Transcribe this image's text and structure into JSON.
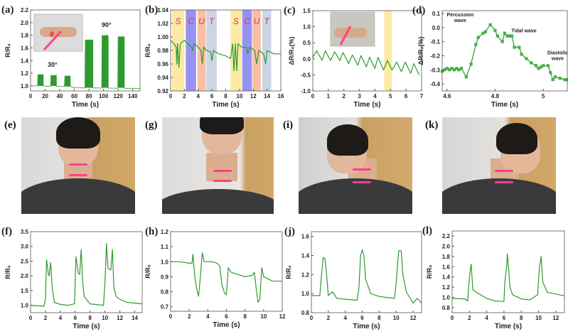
{
  "colors": {
    "line": "#2e9a2e",
    "line_dark": "#1f6e2a",
    "marker": "#39c23a",
    "yellow": "#fbe79a",
    "blue": "#8a86f0",
    "orange": "#f7b89a",
    "grey": "#c5d0e0",
    "sensor": "#ff3e8a"
  },
  "chart_data": [
    {
      "panel": "(a)",
      "type": "line",
      "xlabel": "Time (s)",
      "ylabel": "R/R₀",
      "xlim": [
        0,
        150
      ],
      "ylim": [
        0.92,
        2.2
      ],
      "xticks": [
        0,
        20,
        40,
        60,
        80,
        100,
        120,
        140
      ],
      "yticks": [
        1.0,
        1.2,
        1.4,
        1.6,
        1.8,
        2.0,
        2.2
      ],
      "baseline": [
        [
          0,
          1.0
        ],
        [
          55,
          0.99
        ],
        [
          60,
          0.97
        ],
        [
          150,
          0.96
        ]
      ],
      "bursts": [
        {
          "start": 10,
          "end": 17,
          "min": 1.0,
          "max": 1.18
        },
        {
          "start": 28,
          "end": 35,
          "min": 1.0,
          "max": 1.17
        },
        {
          "start": 47,
          "end": 54,
          "min": 0.99,
          "max": 1.16
        },
        {
          "start": 75,
          "end": 85,
          "min": 0.97,
          "max": 1.73
        },
        {
          "start": 98,
          "end": 106,
          "min": 0.97,
          "max": 1.8
        },
        {
          "start": 120,
          "end": 128,
          "min": 0.97,
          "max": 1.78
        }
      ],
      "annotations": [
        {
          "text": "30°",
          "x": 30,
          "y": 1.3
        },
        {
          "text": "90°",
          "x": 104,
          "y": 1.93
        }
      ],
      "inset": {
        "label": "θ"
      }
    },
    {
      "panel": "(b)",
      "type": "line",
      "xlabel": "Time (s)",
      "ylabel": "R/R₀",
      "xlim": [
        0,
        16
      ],
      "ylim": [
        0.92,
        1.04
      ],
      "xticks": [
        0,
        2,
        4,
        6,
        8,
        10,
        12,
        14,
        16
      ],
      "yticks": [
        0.92,
        0.94,
        0.96,
        0.98,
        1.0,
        1.02,
        1.04
      ],
      "bands": [
        {
          "from": 0.2,
          "to": 2.0,
          "color": "yellow",
          "text": "S"
        },
        {
          "from": 2.2,
          "to": 3.7,
          "color": "blue",
          "text": "C"
        },
        {
          "from": 3.9,
          "to": 5.1,
          "color": "orange",
          "text": "U"
        },
        {
          "from": 5.2,
          "to": 6.7,
          "color": "grey",
          "text": "T"
        },
        {
          "from": 8.7,
          "to": 10.3,
          "color": "yellow",
          "text": "S"
        },
        {
          "from": 10.4,
          "to": 11.8,
          "color": "blue",
          "text": "C"
        },
        {
          "from": 11.9,
          "to": 13.1,
          "color": "orange",
          "text": "U"
        },
        {
          "from": 13.3,
          "to": 14.6,
          "color": "grey",
          "text": "T"
        }
      ],
      "points": [
        [
          0,
          0.995
        ],
        [
          0.5,
          0.99
        ],
        [
          0.8,
          0.985
        ],
        [
          0.9,
          0.96
        ],
        [
          1.0,
          0.99
        ],
        [
          1.2,
          0.955
        ],
        [
          1.4,
          0.99
        ],
        [
          2,
          0.995
        ],
        [
          2.5,
          0.99
        ],
        [
          3,
          0.985
        ],
        [
          3.2,
          0.98
        ],
        [
          3.4,
          0.99
        ],
        [
          4,
          0.985
        ],
        [
          4.4,
          0.98
        ],
        [
          4.6,
          0.96
        ],
        [
          4.8,
          0.985
        ],
        [
          5.2,
          0.98
        ],
        [
          5.8,
          0.978
        ],
        [
          6,
          0.965
        ],
        [
          6.2,
          0.98
        ],
        [
          7,
          0.975
        ],
        [
          8,
          0.972
        ],
        [
          8.7,
          0.968
        ],
        [
          9,
          0.99
        ],
        [
          9.2,
          0.95
        ],
        [
          9.4,
          0.99
        ],
        [
          9.6,
          0.95
        ],
        [
          9.8,
          0.99
        ],
        [
          10.3,
          0.985
        ],
        [
          11,
          0.985
        ],
        [
          11.2,
          0.975
        ],
        [
          11.5,
          0.985
        ],
        [
          12.2,
          0.98
        ],
        [
          12.5,
          0.96
        ],
        [
          12.8,
          0.98
        ],
        [
          13.5,
          0.975
        ],
        [
          13.8,
          0.96
        ],
        [
          14,
          0.98
        ],
        [
          15,
          0.975
        ],
        [
          16,
          0.975
        ]
      ]
    },
    {
      "panel": "(c)",
      "type": "line",
      "xlabel": "Time (s)",
      "ylabel": "ΔR/R₀(%)",
      "xlim": [
        0,
        7
      ],
      "ylim": [
        -1.0,
        1.5
      ],
      "xticks": [
        0,
        1,
        2,
        3,
        4,
        5,
        6,
        7
      ],
      "yticks": [
        -1.0,
        -0.5,
        0.0,
        0.5,
        1.0,
        1.5
      ],
      "bands": [
        {
          "from": 4.6,
          "to": 5.1,
          "color": "yellow",
          "text": ""
        }
      ],
      "points": [
        [
          0,
          0.05
        ],
        [
          0.25,
          0.25
        ],
        [
          0.6,
          -0.05
        ],
        [
          0.8,
          0.25
        ],
        [
          1.15,
          -0.05
        ],
        [
          1.4,
          0.22
        ],
        [
          1.75,
          -0.05
        ],
        [
          1.95,
          0.2
        ],
        [
          2.3,
          -0.15
        ],
        [
          2.55,
          0.12
        ],
        [
          2.9,
          -0.2
        ],
        [
          3.1,
          0.1
        ],
        [
          3.45,
          -0.25
        ],
        [
          3.65,
          0.05
        ],
        [
          4.0,
          -0.3
        ],
        [
          4.2,
          0.05
        ],
        [
          4.55,
          -0.35
        ],
        [
          4.8,
          -0.05
        ],
        [
          5.1,
          -0.35
        ],
        [
          5.4,
          -0.1
        ],
        [
          5.7,
          -0.4
        ],
        [
          5.95,
          -0.1
        ],
        [
          6.3,
          -0.45
        ],
        [
          6.5,
          -0.15
        ],
        [
          6.85,
          -0.5
        ]
      ],
      "inset": {
        "label": ""
      }
    },
    {
      "panel": "(d)",
      "type": "line",
      "markers": true,
      "xlabel": "Time (s)",
      "ylabel": "ΔR/R₀(%)",
      "xlim": [
        4.58,
        5.1
      ],
      "ylim": [
        -0.45,
        0.12
      ],
      "xticks": [
        4.6,
        4.8,
        5.0
      ],
      "yticks": [
        -0.4,
        -0.3,
        -0.2,
        -0.1,
        0.0,
        0.1
      ],
      "points": [
        [
          4.58,
          -0.31
        ],
        [
          4.59,
          -0.3
        ],
        [
          4.6,
          -0.29
        ],
        [
          4.61,
          -0.3
        ],
        [
          4.62,
          -0.29
        ],
        [
          4.63,
          -0.3
        ],
        [
          4.64,
          -0.29
        ],
        [
          4.65,
          -0.3
        ],
        [
          4.66,
          -0.29
        ],
        [
          4.68,
          -0.35
        ],
        [
          4.7,
          -0.26
        ],
        [
          4.72,
          -0.12
        ],
        [
          4.73,
          -0.07
        ],
        [
          4.75,
          -0.04
        ],
        [
          4.76,
          -0.03
        ],
        [
          4.78,
          0.02
        ],
        [
          4.8,
          -0.02
        ],
        [
          4.81,
          -0.06
        ],
        [
          4.83,
          -0.1
        ],
        [
          4.84,
          -0.04
        ],
        [
          4.85,
          -0.06
        ],
        [
          4.86,
          -0.06
        ],
        [
          4.87,
          -0.06
        ],
        [
          4.88,
          -0.14
        ],
        [
          4.9,
          -0.14
        ],
        [
          4.91,
          -0.19
        ],
        [
          4.93,
          -0.22
        ],
        [
          4.95,
          -0.25
        ],
        [
          4.97,
          -0.27
        ],
        [
          4.98,
          -0.29
        ],
        [
          4.99,
          -0.28
        ],
        [
          5.0,
          -0.27
        ],
        [
          5.02,
          -0.27
        ],
        [
          5.03,
          -0.32
        ],
        [
          5.04,
          -0.37
        ],
        [
          5.05,
          -0.35
        ],
        [
          5.07,
          -0.36
        ],
        [
          5.09,
          -0.37
        ],
        [
          5.1,
          -0.37
        ]
      ],
      "annotations": [
        {
          "text": "Percussion",
          "x": 4.655,
          "y": 0.08
        },
        {
          "text": "wave",
          "x": 4.655,
          "y": 0.04
        },
        {
          "text": "Tidal wave",
          "x": 4.92,
          "y": -0.035
        },
        {
          "text": "Diastolic",
          "x": 5.06,
          "y": -0.19
        },
        {
          "text": "wave",
          "x": 5.06,
          "y": -0.23
        }
      ]
    },
    {
      "panel": "(f)",
      "type": "line",
      "xlabel": "Time (s)",
      "ylabel": "R/R₀",
      "xlim": [
        0,
        15
      ],
      "ylim": [
        0.75,
        3.5
      ],
      "xticks": [
        0,
        2,
        4,
        6,
        8,
        10,
        12,
        14
      ],
      "yticks": [
        1.0,
        1.5,
        2.0,
        2.5,
        3.0,
        3.5
      ],
      "points": [
        [
          0,
          1.0
        ],
        [
          1.8,
          0.97
        ],
        [
          2.0,
          1.2
        ],
        [
          2.15,
          2.55
        ],
        [
          2.4,
          2.05
        ],
        [
          2.5,
          2.0
        ],
        [
          2.7,
          2.45
        ],
        [
          2.9,
          1.6
        ],
        [
          3.2,
          1.1
        ],
        [
          4,
          1.03
        ],
        [
          5,
          1.0
        ],
        [
          5.9,
          1.05
        ],
        [
          6.1,
          2.65
        ],
        [
          6.4,
          2.1
        ],
        [
          6.6,
          2.05
        ],
        [
          6.8,
          2.9
        ],
        [
          7.0,
          1.8
        ],
        [
          7.2,
          1.3
        ],
        [
          8,
          1.05
        ],
        [
          9.8,
          1.0
        ],
        [
          10.0,
          1.8
        ],
        [
          10.2,
          3.1
        ],
        [
          10.4,
          2.25
        ],
        [
          10.8,
          2.2
        ],
        [
          11.0,
          2.9
        ],
        [
          11.2,
          1.6
        ],
        [
          11.5,
          1.3
        ],
        [
          12,
          1.2
        ],
        [
          13,
          1.1
        ],
        [
          15,
          1.05
        ]
      ]
    },
    {
      "panel": "(h)",
      "type": "line",
      "xlabel": "Time (s)",
      "ylabel": "R/R₀",
      "xlim": [
        0,
        12
      ],
      "ylim": [
        0.67,
        1.2
      ],
      "xticks": [
        0,
        2,
        4,
        6,
        8,
        10,
        12
      ],
      "yticks": [
        0.7,
        0.8,
        0.9,
        1.0,
        1.1,
        1.2
      ],
      "points": [
        [
          0,
          1.0
        ],
        [
          1,
          1.0
        ],
        [
          2,
          0.99
        ],
        [
          2.3,
          0.99
        ],
        [
          2.4,
          1.05
        ],
        [
          2.6,
          0.9
        ],
        [
          2.8,
          0.82
        ],
        [
          3.0,
          0.77
        ],
        [
          3.2,
          0.9
        ],
        [
          3.4,
          1.06
        ],
        [
          3.6,
          1.0
        ],
        [
          4.5,
          1.0
        ],
        [
          5.0,
          0.99
        ],
        [
          5.3,
          0.97
        ],
        [
          5.5,
          0.85
        ],
        [
          5.8,
          0.79
        ],
        [
          6.0,
          0.78
        ],
        [
          6.2,
          0.96
        ],
        [
          6.5,
          0.93
        ],
        [
          7.5,
          0.91
        ],
        [
          8,
          0.9
        ],
        [
          8.8,
          0.91
        ],
        [
          9.0,
          0.93
        ],
        [
          9.2,
          0.82
        ],
        [
          9.4,
          0.73
        ],
        [
          9.6,
          0.75
        ],
        [
          9.8,
          0.96
        ],
        [
          10,
          0.9
        ],
        [
          11,
          0.87
        ],
        [
          12,
          0.87
        ]
      ]
    },
    {
      "panel": "(j)",
      "type": "line",
      "xlabel": "Time (s)",
      "ylabel": "R/R₀",
      "xlim": [
        0,
        13
      ],
      "ylim": [
        0.8,
        1.65
      ],
      "xticks": [
        0,
        2,
        4,
        6,
        8,
        10,
        12
      ],
      "yticks": [
        0.8,
        1.0,
        1.2,
        1.4,
        1.6
      ],
      "points": [
        [
          0,
          0.98
        ],
        [
          1,
          0.98
        ],
        [
          1.2,
          1.2
        ],
        [
          1.4,
          1.38
        ],
        [
          1.6,
          1.37
        ],
        [
          1.8,
          1.2
        ],
        [
          2.0,
          0.98
        ],
        [
          2.5,
          1.02
        ],
        [
          3,
          0.95
        ],
        [
          5.4,
          0.93
        ],
        [
          5.6,
          1.05
        ],
        [
          5.8,
          1.4
        ],
        [
          6.0,
          1.46
        ],
        [
          6.2,
          1.4
        ],
        [
          6.4,
          1.15
        ],
        [
          7,
          1.0
        ],
        [
          8,
          0.97
        ],
        [
          9.8,
          0.95
        ],
        [
          10.0,
          1.1
        ],
        [
          10.3,
          1.45
        ],
        [
          10.6,
          1.45
        ],
        [
          10.8,
          1.2
        ],
        [
          11.2,
          1.02
        ],
        [
          12,
          0.9
        ],
        [
          12.5,
          0.95
        ],
        [
          13,
          0.9
        ]
      ]
    },
    {
      "panel": "(l)",
      "type": "line",
      "xlabel": "Time (s)",
      "ylabel": "R/R₀",
      "xlim": [
        0,
        13
      ],
      "ylim": [
        0.7,
        2.3
      ],
      "xticks": [
        0,
        2,
        4,
        6,
        8,
        10,
        12
      ],
      "yticks": [
        0.8,
        1.0,
        1.2,
        1.4,
        1.6,
        1.8,
        2.0,
        2.2
      ],
      "points": [
        [
          0,
          0.98
        ],
        [
          1.5,
          0.97
        ],
        [
          1.8,
          0.93
        ],
        [
          2.0,
          1.4
        ],
        [
          2.2,
          1.65
        ],
        [
          2.4,
          1.15
        ],
        [
          3,
          1.08
        ],
        [
          4,
          0.98
        ],
        [
          5,
          0.93
        ],
        [
          6,
          0.92
        ],
        [
          6.1,
          1.3
        ],
        [
          6.3,
          1.6
        ],
        [
          6.4,
          1.85
        ],
        [
          6.7,
          1.2
        ],
        [
          7,
          1.05
        ],
        [
          8,
          0.97
        ],
        [
          9,
          0.95
        ],
        [
          9.9,
          1.05
        ],
        [
          10.1,
          1.6
        ],
        [
          10.3,
          1.8
        ],
        [
          10.5,
          1.3
        ],
        [
          11,
          1.1
        ],
        [
          13,
          1.03
        ]
      ]
    }
  ],
  "photos": [
    {
      "panel": "(e)"
    },
    {
      "panel": "(g)"
    },
    {
      "panel": "(i)"
    },
    {
      "panel": "(k)"
    }
  ]
}
